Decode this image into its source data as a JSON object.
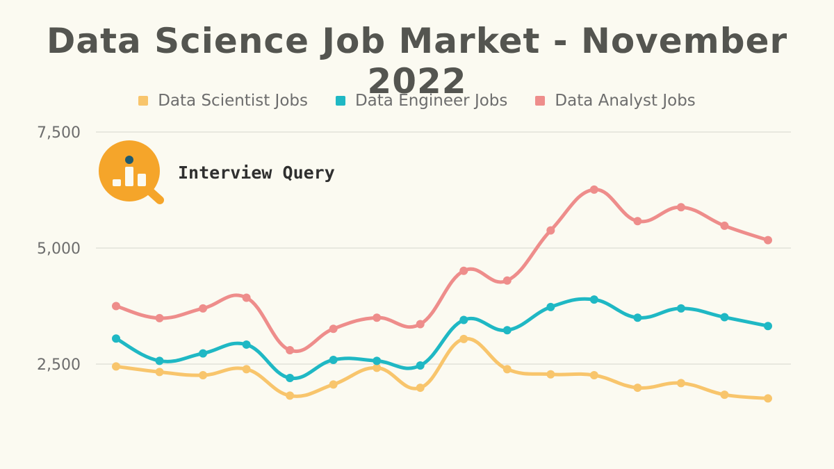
{
  "title": "Data Science Job Market - November 2022",
  "brand": {
    "name": "Interview Query",
    "logo_icon": "magnifier-bar-chart-icon",
    "logo_color": "#f5a52a",
    "dot_color": "#1e5a70"
  },
  "chart_data": {
    "type": "line",
    "title": "Data Science Job Market - November 2022",
    "xlabel": "",
    "ylabel": "",
    "ylim": [
      1000,
      7500
    ],
    "yticks": [
      2500,
      5000,
      7500
    ],
    "ytick_labels": [
      "2,500",
      "5,000",
      "7,500"
    ],
    "grid": true,
    "legend_position": "top",
    "x": [
      1,
      2,
      3,
      4,
      5,
      6,
      7,
      8,
      9,
      10,
      11,
      12,
      13,
      14,
      15,
      16
    ],
    "series": [
      {
        "name": "Data Scientist Jobs",
        "color": "#f8c56c",
        "values": [
          2450,
          2330,
          2260,
          2390,
          1820,
          2060,
          2420,
          1990,
          3040,
          2390,
          2280,
          2260,
          1990,
          2090,
          1840,
          1760
        ]
      },
      {
        "name": "Data Engineer Jobs",
        "color": "#1fb8c4",
        "values": [
          3050,
          2570,
          2730,
          2920,
          2200,
          2590,
          2570,
          2470,
          3450,
          3230,
          3730,
          3890,
          3500,
          3700,
          3510,
          3320
        ]
      },
      {
        "name": "Data Analyst Jobs",
        "color": "#ee8d8b",
        "values": [
          3750,
          3490,
          3700,
          3930,
          2800,
          3260,
          3500,
          3360,
          4510,
          4300,
          5380,
          6260,
          5580,
          5880,
          5480,
          5170
        ]
      }
    ]
  }
}
